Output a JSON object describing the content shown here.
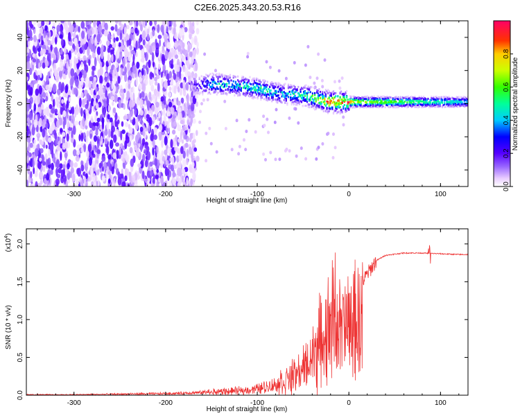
{
  "title": "C2E6.2025.343.20.53.R16",
  "chart_data": [
    {
      "type": "heatmap",
      "xlabel": "Height of straight line (km)",
      "ylabel": "Frequency (Hz)",
      "xlim": [
        -352,
        130
      ],
      "ylim": [
        -50,
        50
      ],
      "xticks": [
        "-300",
        "-200",
        "-100",
        "0",
        "100"
      ],
      "yticks": [
        "-40",
        "-20",
        "0",
        "20",
        "40"
      ],
      "colorbar": {
        "label": "Normalized spectral amplitude",
        "range": [
          0,
          1
        ],
        "ticks": [
          "0.0",
          "0.2",
          "0.4",
          "0.6",
          "0.8"
        ]
      },
      "ridge": {
        "x": [
          -165,
          -150,
          -125,
          -100,
          -75,
          -50,
          -30,
          -20,
          -10,
          0,
          10,
          130
        ],
        "frequency": [
          11,
          12,
          11,
          9,
          6,
          5,
          2,
          1,
          1,
          1,
          1,
          1
        ],
        "peak_amplitude": [
          0.25,
          0.55,
          0.5,
          0.6,
          0.5,
          0.6,
          0.85,
          1.0,
          1.0,
          1.0,
          0.8,
          0.5
        ]
      },
      "noise_region_x": [
        -352,
        -165
      ],
      "grid": false
    },
    {
      "type": "line",
      "xlabel": "Height of straight line (km)",
      "ylabel": "SNR (10 * v/v)",
      "scale_label": "(x10",
      "scale_exponent": "4",
      "xlim": [
        -352,
        130
      ],
      "ylim": [
        0,
        2.2
      ],
      "xticks": [
        "-300",
        "-200",
        "-100",
        "0",
        "100"
      ],
      "yticks": [
        "0.0",
        "0.5",
        "1.0",
        "1.5",
        "2.0"
      ],
      "color": "#ee3333",
      "series": [
        {
          "x": [
            -352,
            -300,
            -250,
            -200,
            -160,
            -120,
            -100,
            -80,
            -60,
            -50,
            -40,
            -30,
            -20,
            -15,
            -10,
            0,
            10,
            20,
            30,
            40,
            60,
            80,
            100,
            120,
            130
          ],
          "y": [
            0.01,
            0.01,
            0.02,
            0.03,
            0.05,
            0.08,
            0.12,
            0.2,
            0.35,
            0.5,
            0.7,
            1.0,
            1.3,
            1.6,
            1.2,
            1.3,
            1.4,
            1.6,
            1.78,
            1.85,
            1.88,
            1.88,
            1.87,
            1.86,
            1.86
          ]
        }
      ]
    }
  ]
}
